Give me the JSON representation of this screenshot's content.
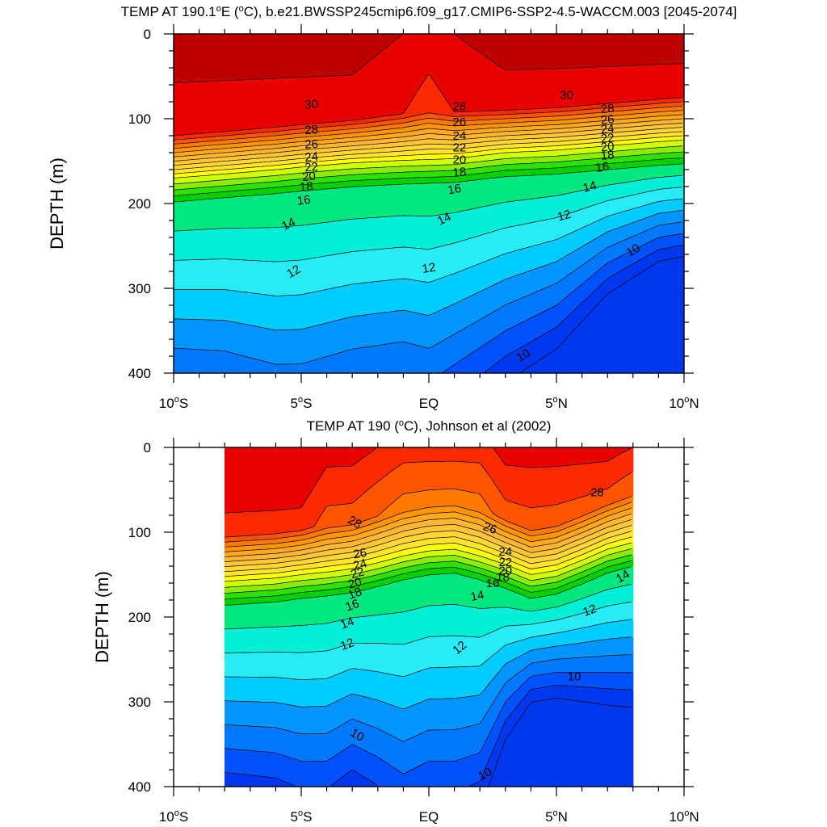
{
  "chart_data": [
    {
      "type": "contour",
      "title": "TEMP AT 190.1°E (°C), b.e21.BWSSP245cmip6.f09_g17.CMIP6-SSP2-4.5-WACCM.003 [2045-2074]",
      "title_parts": {
        "pre": "TEMP AT 190.1",
        "sup1": "o",
        "mid": "E (",
        "sup2": "o",
        "post": "C), b.e21.BWSSP245cmip6.f09_g17.CMIP6-SSP2-4.5-WACCM.003 [2045-2074]"
      },
      "xlabel": "",
      "ylabel": "DEPTH (m)",
      "xlim": [
        -10,
        10
      ],
      "ylim": [
        0,
        400
      ],
      "x_ticks": [
        {
          "value": -10,
          "num": "10",
          "deg": "o",
          "suf": "S"
        },
        {
          "value": -5,
          "num": "5",
          "deg": "o",
          "suf": "S"
        },
        {
          "value": 0,
          "num": "EQ",
          "deg": "",
          "suf": ""
        },
        {
          "value": 5,
          "num": "5",
          "deg": "o",
          "suf": "N"
        },
        {
          "value": 10,
          "num": "10",
          "deg": "o",
          "suf": "N"
        }
      ],
      "y_ticks": [
        0,
        100,
        200,
        300,
        400
      ],
      "data_x_range": [
        -10,
        10
      ],
      "colorscale": [
        {
          "min": 32,
          "color": "#bf0000"
        },
        {
          "min": 30,
          "color": "#ea0000"
        },
        {
          "min": 29,
          "color": "#fb2a00"
        },
        {
          "min": 28,
          "color": "#ff5500"
        },
        {
          "min": 27,
          "color": "#ff7a00"
        },
        {
          "min": 26,
          "color": "#ff9500"
        },
        {
          "min": 25,
          "color": "#ffa819"
        },
        {
          "min": 24,
          "color": "#ffb733"
        },
        {
          "min": 23,
          "color": "#ffc633"
        },
        {
          "min": 22,
          "color": "#ffd633"
        },
        {
          "min": 21,
          "color": "#ffe42a"
        },
        {
          "min": 20,
          "color": "#ffff00"
        },
        {
          "min": 19,
          "color": "#cfff00"
        },
        {
          "min": 18,
          "color": "#8aed00"
        },
        {
          "min": 17,
          "color": "#2ae100"
        },
        {
          "min": 16,
          "color": "#00d100"
        },
        {
          "min": 15,
          "color": "#00e87e"
        },
        {
          "min": 14,
          "color": "#00efd6"
        },
        {
          "min": 13,
          "color": "#26edf5"
        },
        {
          "min": 12,
          "color": "#00ccff"
        },
        {
          "min": 11,
          "color": "#0095ff"
        },
        {
          "min": 10,
          "color": "#0079ff"
        },
        {
          "min": 9,
          "color": "#0052ff"
        },
        {
          "min": 0,
          "color": "#0038f0"
        }
      ],
      "contour_levels": [
        8,
        9,
        10,
        11,
        12,
        13,
        14,
        15,
        16,
        17,
        18,
        19,
        20,
        21,
        22,
        23,
        24,
        25,
        26,
        27,
        28,
        29,
        30,
        32
      ],
      "field": {
        "lat": [
          -10,
          -8,
          -6,
          -5,
          -3,
          -1,
          0,
          1,
          3,
          5,
          7,
          9,
          10
        ],
        "z_mid": [
          170,
          165,
          160,
          157,
          152,
          149,
          148,
          147,
          140,
          137,
          132,
          127,
          125
        ],
        "z10": [
          405,
          410,
          430,
          430,
          410,
          400,
          410,
          390,
          350,
          320,
          270,
          240,
          235
        ],
        "surf": [
          33,
          33,
          33,
          33,
          33,
          32,
          31,
          32,
          33,
          33,
          33,
          33,
          33
        ]
      },
      "contour_labels": [
        {
          "text": "30",
          "x": -4.6,
          "y": 83,
          "angle": -3
        },
        {
          "text": "28",
          "x": -4.6,
          "y": 113,
          "angle": -3
        },
        {
          "text": "26",
          "x": -4.6,
          "y": 130,
          "angle": -3
        },
        {
          "text": "24",
          "x": -4.6,
          "y": 145,
          "angle": -5
        },
        {
          "text": "22",
          "x": -4.6,
          "y": 157,
          "angle": -5
        },
        {
          "text": "20",
          "x": -4.7,
          "y": 168,
          "angle": -5
        },
        {
          "text": "18",
          "x": -4.8,
          "y": 180,
          "angle": -5
        },
        {
          "text": "16",
          "x": -4.9,
          "y": 196,
          "angle": -7
        },
        {
          "text": "14",
          "x": -5.5,
          "y": 224,
          "angle": -25
        },
        {
          "text": "12",
          "x": -5.3,
          "y": 280,
          "angle": -30
        },
        {
          "text": "28",
          "x": 1.2,
          "y": 85,
          "angle": 0
        },
        {
          "text": "26",
          "x": 1.2,
          "y": 104,
          "angle": 0
        },
        {
          "text": "24",
          "x": 1.2,
          "y": 120,
          "angle": 0
        },
        {
          "text": "22",
          "x": 1.2,
          "y": 134,
          "angle": 0
        },
        {
          "text": "20",
          "x": 1.2,
          "y": 148,
          "angle": 0
        },
        {
          "text": "18",
          "x": 1.2,
          "y": 163,
          "angle": -5
        },
        {
          "text": "16",
          "x": 1.0,
          "y": 183,
          "angle": -10
        },
        {
          "text": "14",
          "x": 0.6,
          "y": 218,
          "angle": -25
        },
        {
          "text": "12",
          "x": 0.0,
          "y": 276,
          "angle": -10
        },
        {
          "text": "30",
          "x": 5.4,
          "y": 72,
          "angle": 0
        },
        {
          "text": "28",
          "x": 7.0,
          "y": 88,
          "angle": -5
        },
        {
          "text": "26",
          "x": 7.0,
          "y": 101,
          "angle": -5
        },
        {
          "text": "24",
          "x": 7.0,
          "y": 112,
          "angle": -5
        },
        {
          "text": "22",
          "x": 7.0,
          "y": 123,
          "angle": -5
        },
        {
          "text": "20",
          "x": 7.0,
          "y": 133,
          "angle": -5
        },
        {
          "text": "18",
          "x": 7.0,
          "y": 143,
          "angle": -5
        },
        {
          "text": "16",
          "x": 6.8,
          "y": 157,
          "angle": -10
        },
        {
          "text": "14",
          "x": 6.3,
          "y": 180,
          "angle": -15
        },
        {
          "text": "12",
          "x": 5.3,
          "y": 214,
          "angle": -15
        },
        {
          "text": "10",
          "x": 8.0,
          "y": 255,
          "angle": -30
        },
        {
          "text": "10",
          "x": 3.7,
          "y": 379,
          "angle": -30
        }
      ]
    },
    {
      "type": "contour",
      "title": "TEMP AT 190 (°C), Johnson et al (2002)",
      "title_parts": {
        "pre": "TEMP AT 190 (",
        "sup1": "o",
        "mid": "C), Johnson et al (2002)",
        "sup2": "",
        "post": ""
      },
      "xlabel": "",
      "ylabel": "DEPTH (m)",
      "xlim": [
        -10,
        10
      ],
      "ylim": [
        0,
        400
      ],
      "x_ticks": [
        {
          "value": -10,
          "num": "10",
          "deg": "o",
          "suf": "S"
        },
        {
          "value": -5,
          "num": "5",
          "deg": "o",
          "suf": "S"
        },
        {
          "value": 0,
          "num": "EQ",
          "deg": "",
          "suf": ""
        },
        {
          "value": 5,
          "num": "5",
          "deg": "o",
          "suf": "N"
        },
        {
          "value": 10,
          "num": "10",
          "deg": "o",
          "suf": "N"
        }
      ],
      "y_ticks": [
        0,
        100,
        200,
        300,
        400
      ],
      "data_x_range": [
        -8,
        8
      ],
      "colorscale": [
        {
          "min": 32,
          "color": "#bf0000"
        },
        {
          "min": 30,
          "color": "#ea0000"
        },
        {
          "min": 29,
          "color": "#fb2a00"
        },
        {
          "min": 28,
          "color": "#ff5500"
        },
        {
          "min": 27,
          "color": "#ff7a00"
        },
        {
          "min": 26,
          "color": "#ff9500"
        },
        {
          "min": 25,
          "color": "#ffa819"
        },
        {
          "min": 24,
          "color": "#ffb733"
        },
        {
          "min": 23,
          "color": "#ffc633"
        },
        {
          "min": 22,
          "color": "#ffd633"
        },
        {
          "min": 21,
          "color": "#ffe42a"
        },
        {
          "min": 20,
          "color": "#ffff00"
        },
        {
          "min": 19,
          "color": "#cfff00"
        },
        {
          "min": 18,
          "color": "#8aed00"
        },
        {
          "min": 17,
          "color": "#2ae100"
        },
        {
          "min": 16,
          "color": "#00d100"
        },
        {
          "min": 15,
          "color": "#00e87e"
        },
        {
          "min": 14,
          "color": "#00efd6"
        },
        {
          "min": 13,
          "color": "#26edf5"
        },
        {
          "min": 12,
          "color": "#00ccff"
        },
        {
          "min": 11,
          "color": "#0095ff"
        },
        {
          "min": 10,
          "color": "#0079ff"
        },
        {
          "min": 9,
          "color": "#0052ff"
        },
        {
          "min": 0,
          "color": "#0038f0"
        }
      ],
      "contour_levels": [
        8,
        9,
        10,
        11,
        12,
        13,
        14,
        15,
        16,
        17,
        18,
        19,
        20,
        21,
        22,
        23,
        24,
        25,
        26,
        27,
        28,
        29,
        30,
        32
      ],
      "field": {
        "lat": [
          -8,
          -6,
          -5,
          -4,
          -3,
          -2,
          -1,
          0,
          1,
          2,
          3,
          4,
          5,
          6,
          7,
          8
        ],
        "z_mid": [
          158,
          154,
          150,
          147,
          143,
          136,
          128,
          122,
          120,
          128,
          138,
          150,
          145,
          133,
          120,
          112
        ],
        "z10": [
          355,
          360,
          370,
          370,
          350,
          365,
          385,
          370,
          370,
          360,
          300,
          270,
          265,
          265,
          265,
          265
        ],
        "surf": [
          31.5,
          31.5,
          31.5,
          30.5,
          30.5,
          30,
          29.5,
          29.5,
          29.5,
          29.5,
          30.5,
          30.5,
          30.5,
          30.5,
          30.5,
          30
        ]
      },
      "contour_labels": [
        {
          "text": "28",
          "x": -2.9,
          "y": 88,
          "angle": 30
        },
        {
          "text": "26",
          "x": -2.7,
          "y": 125,
          "angle": -10
        },
        {
          "text": "24",
          "x": -2.7,
          "y": 138,
          "angle": -15
        },
        {
          "text": "22",
          "x": -2.8,
          "y": 148,
          "angle": -15
        },
        {
          "text": "20",
          "x": -2.9,
          "y": 160,
          "angle": -15
        },
        {
          "text": "18",
          "x": -2.9,
          "y": 172,
          "angle": -20
        },
        {
          "text": "16",
          "x": -3.0,
          "y": 186,
          "angle": -20
        },
        {
          "text": "14",
          "x": -3.2,
          "y": 207,
          "angle": -20
        },
        {
          "text": "12",
          "x": -3.2,
          "y": 232,
          "angle": -20
        },
        {
          "text": "10",
          "x": -2.8,
          "y": 339,
          "angle": 30
        },
        {
          "text": "26",
          "x": 2.4,
          "y": 95,
          "angle": 20
        },
        {
          "text": "24",
          "x": 3.0,
          "y": 123,
          "angle": 0
        },
        {
          "text": "22",
          "x": 3.0,
          "y": 135,
          "angle": 0
        },
        {
          "text": "20",
          "x": 3.0,
          "y": 145,
          "angle": 0
        },
        {
          "text": "18",
          "x": 2.9,
          "y": 153,
          "angle": 0
        },
        {
          "text": "16",
          "x": 2.5,
          "y": 160,
          "angle": 0
        },
        {
          "text": "14",
          "x": 1.9,
          "y": 175,
          "angle": -10
        },
        {
          "text": "12",
          "x": 1.2,
          "y": 236,
          "angle": -40
        },
        {
          "text": "28",
          "x": 6.6,
          "y": 53,
          "angle": 0
        },
        {
          "text": "14",
          "x": 7.6,
          "y": 152,
          "angle": -30
        },
        {
          "text": "12",
          "x": 6.3,
          "y": 192,
          "angle": -20
        },
        {
          "text": "10",
          "x": 5.7,
          "y": 270,
          "angle": 0
        },
        {
          "text": "10",
          "x": 2.2,
          "y": 385,
          "angle": -30
        }
      ]
    }
  ]
}
